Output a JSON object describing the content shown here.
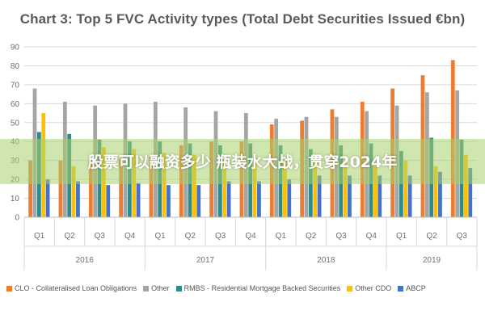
{
  "chart_data": {
    "type": "bar",
    "title": "Chart 3: Top 5 FVC Activity types (Total Debt Securities Issued €bn)",
    "ylim": [
      0,
      90
    ],
    "yticks": [
      0,
      10,
      20,
      30,
      40,
      50,
      60,
      70,
      80,
      90
    ],
    "categories": [
      "Q1",
      "Q2",
      "Q3",
      "Q4",
      "Q1",
      "Q2",
      "Q3",
      "Q4",
      "Q1",
      "Q2",
      "Q3",
      "Q4",
      "Q1",
      "Q2",
      "Q3"
    ],
    "years": [
      {
        "label": "2016",
        "count": 4
      },
      {
        "label": "2017",
        "count": 4
      },
      {
        "label": "2018",
        "count": 4
      },
      {
        "label": "2019",
        "count": 3
      }
    ],
    "series": [
      {
        "name": "CLO - Collateralised Loan Obligations",
        "color": "#ED7D31",
        "values": [
          30,
          30,
          30,
          31,
          32,
          38,
          40,
          40,
          49,
          51,
          57,
          61,
          68,
          75,
          83
        ]
      },
      {
        "name": "Other",
        "color": "#A5A5A5",
        "values": [
          68,
          61,
          59,
          60,
          61,
          58,
          56,
          55,
          52,
          53,
          53,
          56,
          59,
          66,
          67
        ]
      },
      {
        "name": "RMBS - Residential Mortgage Backed Securities",
        "color": "#2E8B8B",
        "values": [
          45,
          44,
          41,
          40,
          40,
          39,
          38,
          39,
          38,
          36,
          38,
          39,
          35,
          42,
          41
        ]
      },
      {
        "name": "Other CDO",
        "color": "#FFC000",
        "values": [
          55,
          27,
          37,
          36,
          34,
          33,
          31,
          31,
          30,
          30,
          29,
          29,
          30,
          27,
          33
        ]
      },
      {
        "name": "ABCP",
        "color": "#4472C4",
        "values": [
          20,
          19,
          17,
          18,
          17,
          17,
          19,
          19,
          20,
          22,
          22,
          22,
          22,
          24,
          26
        ]
      }
    ],
    "legend_position": "bottom",
    "grid": true
  },
  "overlay": {
    "text": "股票可以融资多少 瓶装水大战，贯穿2024年"
  }
}
